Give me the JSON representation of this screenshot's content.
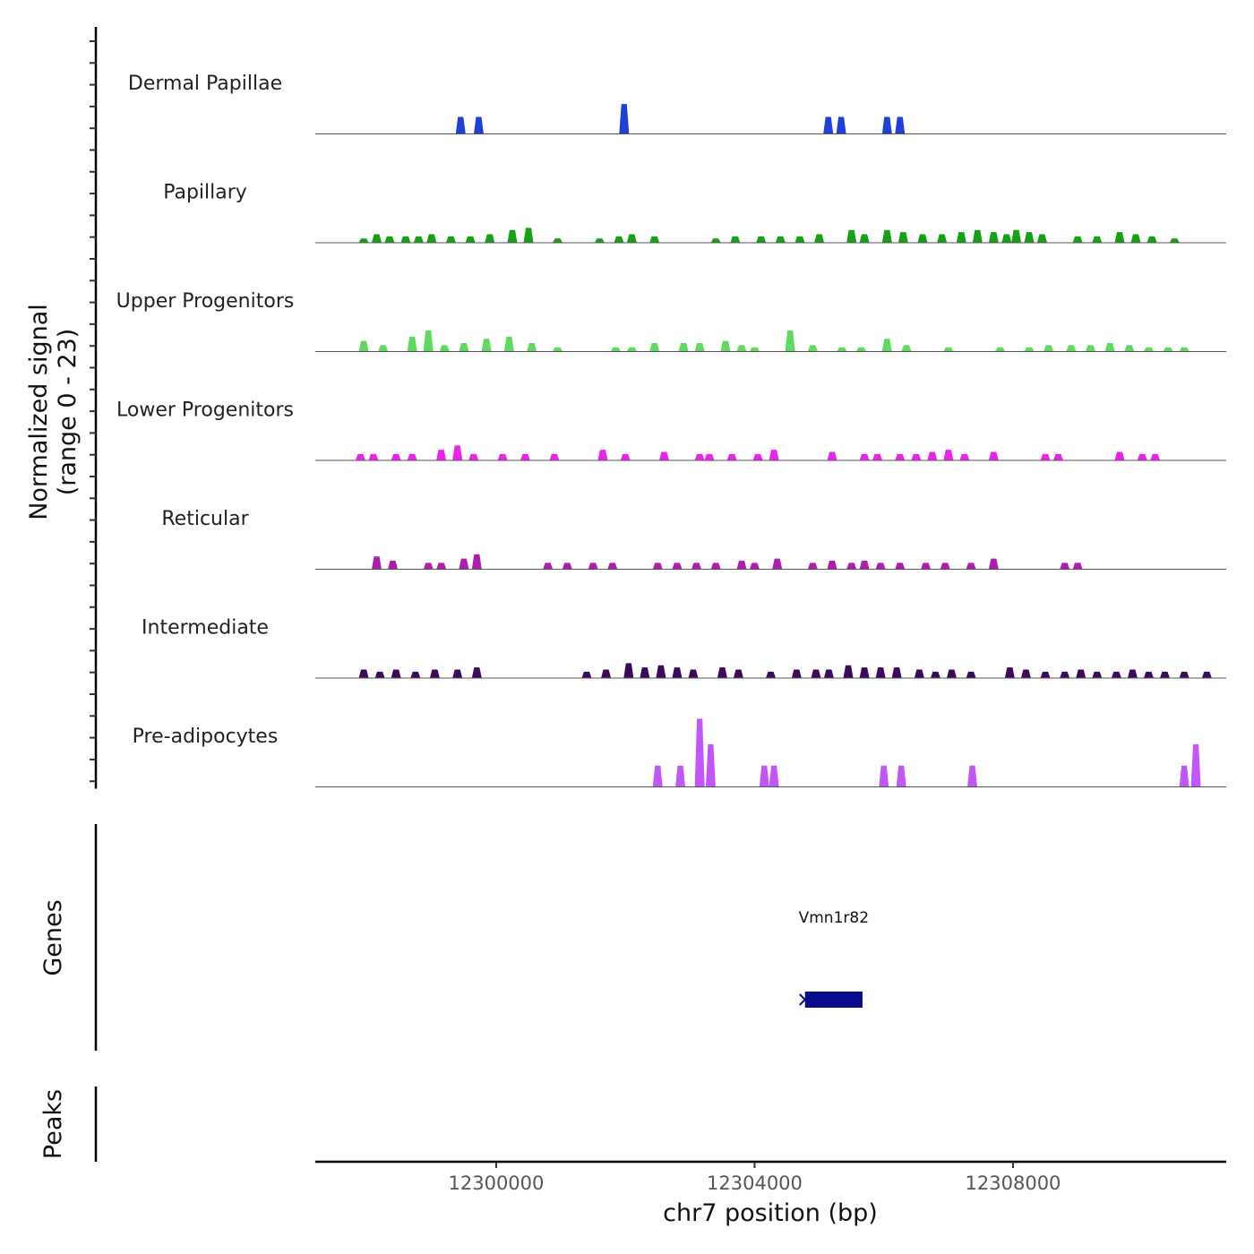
{
  "chart_data": {
    "type": "area",
    "chromosome": "chr7",
    "xlabel": "chr7 position (bp)",
    "ylabel_line1": "Normalized signal",
    "ylabel_line2": "(range 0 - 23)",
    "y_range": [
      0,
      23
    ],
    "xlim": [
      12297200,
      12311300
    ],
    "x_ticks": [
      12300000,
      12304000,
      12308000
    ],
    "x_tick_labels": [
      "12300000",
      "12304000",
      "12308000"
    ],
    "tracks": [
      {
        "name": "Dermal Papillae",
        "color": "#1f3fd6",
        "peaks": [
          [
            12299450,
            4
          ],
          [
            12299730,
            4
          ],
          [
            12301980,
            7
          ],
          [
            12305140,
            4
          ],
          [
            12305340,
            4
          ],
          [
            12306050,
            4
          ],
          [
            12306250,
            4
          ]
        ]
      },
      {
        "name": "Papillary",
        "color": "#16a016",
        "peaks": [
          [
            12297950,
            1
          ],
          [
            12298150,
            2
          ],
          [
            12298350,
            1.5
          ],
          [
            12298600,
            1.5
          ],
          [
            12298800,
            1.5
          ],
          [
            12299000,
            2
          ],
          [
            12299300,
            1.5
          ],
          [
            12299600,
            1.5
          ],
          [
            12299900,
            2
          ],
          [
            12300250,
            3
          ],
          [
            12300500,
            3.5
          ],
          [
            12300950,
            1
          ],
          [
            12301600,
            1
          ],
          [
            12301900,
            1.5
          ],
          [
            12302100,
            2
          ],
          [
            12302450,
            1.5
          ],
          [
            12303400,
            1
          ],
          [
            12303700,
            1.5
          ],
          [
            12304100,
            1.5
          ],
          [
            12304400,
            1.5
          ],
          [
            12304700,
            1.5
          ],
          [
            12305000,
            2
          ],
          [
            12305500,
            3
          ],
          [
            12305700,
            2
          ],
          [
            12306050,
            3
          ],
          [
            12306300,
            2.5
          ],
          [
            12306600,
            2
          ],
          [
            12306900,
            2
          ],
          [
            12307200,
            2.5
          ],
          [
            12307450,
            3
          ],
          [
            12307700,
            2.5
          ],
          [
            12307900,
            2
          ],
          [
            12308050,
            3
          ],
          [
            12308250,
            2.5
          ],
          [
            12308450,
            2
          ],
          [
            12309000,
            1.5
          ],
          [
            12309300,
            1.5
          ],
          [
            12309650,
            2.5
          ],
          [
            12309900,
            2
          ],
          [
            12310150,
            1.5
          ],
          [
            12310500,
            1
          ]
        ]
      },
      {
        "name": "Upper Progenitors",
        "color": "#5fd95f",
        "peaks": [
          [
            12297950,
            2.5
          ],
          [
            12298250,
            1.5
          ],
          [
            12298700,
            3.5
          ],
          [
            12298950,
            5
          ],
          [
            12299200,
            1.5
          ],
          [
            12299500,
            2
          ],
          [
            12299850,
            3
          ],
          [
            12300200,
            3.5
          ],
          [
            12300550,
            2
          ],
          [
            12300950,
            1
          ],
          [
            12301850,
            1
          ],
          [
            12302100,
            1
          ],
          [
            12302450,
            2
          ],
          [
            12302900,
            2
          ],
          [
            12303150,
            2
          ],
          [
            12303550,
            2.5
          ],
          [
            12303800,
            1.5
          ],
          [
            12304000,
            1
          ],
          [
            12304550,
            5
          ],
          [
            12304900,
            1.5
          ],
          [
            12305350,
            1
          ],
          [
            12305650,
            1
          ],
          [
            12306050,
            3
          ],
          [
            12306350,
            1.5
          ],
          [
            12307000,
            1
          ],
          [
            12307800,
            1
          ],
          [
            12308250,
            1
          ],
          [
            12308550,
            1.5
          ],
          [
            12308900,
            1.5
          ],
          [
            12309200,
            1.5
          ],
          [
            12309500,
            2
          ],
          [
            12309800,
            1.5
          ],
          [
            12310100,
            1
          ],
          [
            12310400,
            1
          ],
          [
            12310650,
            1
          ]
        ]
      },
      {
        "name": "Lower Progenitors",
        "color": "#ee22ee",
        "peaks": [
          [
            12297900,
            1.5
          ],
          [
            12298100,
            1.5
          ],
          [
            12298450,
            1.5
          ],
          [
            12298700,
            1.5
          ],
          [
            12299150,
            2.5
          ],
          [
            12299400,
            3.5
          ],
          [
            12299650,
            1.5
          ],
          [
            12300100,
            1.5
          ],
          [
            12300450,
            1.5
          ],
          [
            12300900,
            1.5
          ],
          [
            12301650,
            2.5
          ],
          [
            12302000,
            1.5
          ],
          [
            12302600,
            2
          ],
          [
            12303150,
            1.5
          ],
          [
            12303300,
            1.5
          ],
          [
            12303650,
            1.5
          ],
          [
            12304050,
            1.5
          ],
          [
            12304300,
            2.5
          ],
          [
            12305200,
            2
          ],
          [
            12305700,
            1.5
          ],
          [
            12305900,
            1.5
          ],
          [
            12306250,
            1.5
          ],
          [
            12306500,
            1.5
          ],
          [
            12306750,
            2
          ],
          [
            12307000,
            2.5
          ],
          [
            12307250,
            1.5
          ],
          [
            12307700,
            2
          ],
          [
            12308500,
            1.5
          ],
          [
            12308700,
            1.5
          ],
          [
            12309650,
            2
          ],
          [
            12310000,
            1.5
          ],
          [
            12310200,
            1.5
          ]
        ]
      },
      {
        "name": "Reticular",
        "color": "#b01cb0",
        "peaks": [
          [
            12298150,
            3
          ],
          [
            12298400,
            2
          ],
          [
            12298950,
            1.5
          ],
          [
            12299150,
            1.5
          ],
          [
            12299500,
            2.5
          ],
          [
            12299700,
            3.5
          ],
          [
            12300800,
            1.5
          ],
          [
            12301100,
            1.5
          ],
          [
            12301500,
            1.5
          ],
          [
            12301800,
            1.5
          ],
          [
            12302500,
            1.5
          ],
          [
            12302800,
            1.5
          ],
          [
            12303100,
            1.5
          ],
          [
            12303400,
            1.5
          ],
          [
            12303800,
            2
          ],
          [
            12304000,
            1.5
          ],
          [
            12304350,
            2.5
          ],
          [
            12304900,
            1.5
          ],
          [
            12305200,
            2
          ],
          [
            12305500,
            1.5
          ],
          [
            12305700,
            2
          ],
          [
            12305950,
            1.5
          ],
          [
            12306250,
            1.5
          ],
          [
            12306650,
            1.5
          ],
          [
            12306950,
            1.5
          ],
          [
            12307350,
            1.5
          ],
          [
            12307700,
            2.5
          ],
          [
            12308800,
            1.5
          ],
          [
            12309000,
            1.5
          ]
        ]
      },
      {
        "name": "Intermediate",
        "color": "#3b0a5c",
        "peaks": [
          [
            12297950,
            2
          ],
          [
            12298200,
            1.5
          ],
          [
            12298450,
            2
          ],
          [
            12298750,
            1.5
          ],
          [
            12299050,
            2
          ],
          [
            12299400,
            2
          ],
          [
            12299700,
            2.5
          ],
          [
            12301400,
            1.5
          ],
          [
            12301700,
            2
          ],
          [
            12302050,
            3.5
          ],
          [
            12302300,
            2.5
          ],
          [
            12302550,
            3
          ],
          [
            12302800,
            2.5
          ],
          [
            12303050,
            2
          ],
          [
            12303500,
            2.5
          ],
          [
            12303750,
            2
          ],
          [
            12304250,
            1.5
          ],
          [
            12304650,
            2
          ],
          [
            12304950,
            2
          ],
          [
            12305150,
            2
          ],
          [
            12305450,
            3
          ],
          [
            12305700,
            2.5
          ],
          [
            12305950,
            2.5
          ],
          [
            12306200,
            2.5
          ],
          [
            12306550,
            2
          ],
          [
            12306800,
            1.5
          ],
          [
            12307050,
            2
          ],
          [
            12307350,
            1.5
          ],
          [
            12307950,
            2.5
          ],
          [
            12308200,
            2
          ],
          [
            12308500,
            1.5
          ],
          [
            12308800,
            1.5
          ],
          [
            12309050,
            2
          ],
          [
            12309300,
            1.5
          ],
          [
            12309600,
            1.5
          ],
          [
            12309850,
            2
          ],
          [
            12310100,
            1.5
          ],
          [
            12310350,
            1.5
          ],
          [
            12310650,
            1.5
          ],
          [
            12311000,
            1.5
          ]
        ]
      },
      {
        "name": "Pre-adipocytes",
        "color": "#c157fb",
        "peaks": [
          [
            12302500,
            5
          ],
          [
            12302850,
            5
          ],
          [
            12303150,
            16
          ],
          [
            12303320,
            10
          ],
          [
            12304150,
            5
          ],
          [
            12304300,
            5
          ],
          [
            12306000,
            5
          ],
          [
            12306270,
            5
          ],
          [
            12307370,
            5
          ],
          [
            12310650,
            5
          ],
          [
            12310830,
            10
          ]
        ]
      }
    ],
    "genes": {
      "title": "Genes",
      "items": [
        {
          "name": "Vmn1r82",
          "start": 12304780,
          "end": 12305670,
          "strand": "-",
          "color": "#0a0a8c"
        }
      ]
    },
    "peaks_panel": {
      "title": "Peaks",
      "items": []
    }
  }
}
